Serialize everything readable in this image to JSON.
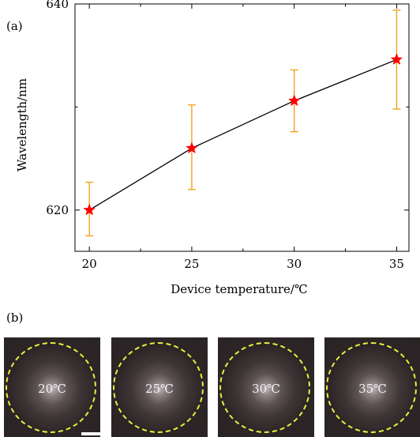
{
  "chart_data": {
    "type": "line",
    "panel_label": "(a)",
    "xlabel": "Device temperature/℃",
    "ylabel": "Wavelength/nm",
    "x": [
      20,
      25,
      30,
      35
    ],
    "y": [
      620.0,
      626.0,
      630.6,
      634.6
    ],
    "y_err_upper": [
      2.7,
      4.2,
      3.0,
      4.8
    ],
    "y_err_lower": [
      2.5,
      4.0,
      3.0,
      4.8
    ],
    "xlim": [
      19.3,
      35.6
    ],
    "ylim": [
      616,
      640
    ],
    "x_ticks": [
      "20",
      "25",
      "30",
      "35"
    ],
    "y_ticks": [
      "620",
      "640"
    ],
    "marker": "star",
    "colors": {
      "line": "#000000",
      "marker": "#ff0000",
      "errorbar": "#f39c12"
    },
    "grid": false
  },
  "panel_b": {
    "label": "(b)",
    "images": [
      {
        "temperature": "20℃"
      },
      {
        "temperature": "25℃"
      },
      {
        "temperature": "30℃"
      },
      {
        "temperature": "35℃"
      }
    ]
  }
}
